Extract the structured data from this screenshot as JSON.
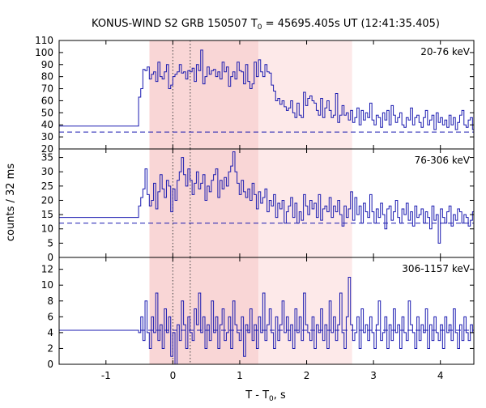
{
  "figure": {
    "title_prefix": "KONUS-WIND S2 GRB 150507 T",
    "title_sub": "0",
    "title_suffix": " = 45695.405s UT (12:41:35.405)",
    "xlabel_prefix": "T - T",
    "xlabel_sub": "0",
    "xlabel_suffix": ", s",
    "ylabel": "counts / 32 ms"
  },
  "chart_data": [
    {
      "type": "line",
      "panel_label": "20-76 keV",
      "xlim": [
        -1.7,
        4.5
      ],
      "ylim": [
        20,
        110
      ],
      "yticks": [
        20,
        30,
        40,
        50,
        60,
        70,
        80,
        90,
        100,
        110
      ],
      "background_level": 34,
      "pre_trigger": {
        "x_start": -1.7,
        "x_end": -0.512,
        "value": 39
      },
      "x_start": -0.512,
      "bin_width": 0.032,
      "values": [
        63,
        70,
        86,
        85,
        88,
        78,
        82,
        84,
        76,
        92,
        80,
        78,
        84,
        90,
        70,
        73,
        80,
        82,
        84,
        90,
        83,
        84,
        78,
        85,
        84,
        87,
        76,
        90,
        85,
        102,
        74,
        80,
        88,
        82,
        85,
        86,
        80,
        84,
        78,
        92,
        84,
        88,
        72,
        80,
        84,
        78,
        92,
        85,
        84,
        74,
        90,
        76,
        70,
        74,
        92,
        80,
        94,
        84,
        80,
        90,
        84,
        83,
        73,
        68,
        60,
        62,
        57,
        60,
        55,
        52,
        54,
        60,
        50,
        46,
        58,
        48,
        46,
        67,
        56,
        62,
        64,
        60,
        58,
        52,
        48,
        62,
        46,
        54,
        60,
        52,
        46,
        48,
        66,
        42,
        48,
        56,
        48,
        50,
        44,
        52,
        42,
        46,
        54,
        40,
        52,
        44,
        50,
        46,
        58,
        44,
        40,
        48,
        46,
        38,
        50,
        44,
        52,
        40,
        56,
        48,
        42,
        46,
        50,
        40,
        38,
        46,
        44,
        54,
        40,
        46,
        48,
        42,
        38,
        46,
        52,
        40,
        44,
        48,
        36,
        50,
        42,
        46,
        40,
        44,
        38,
        48,
        40,
        46,
        36,
        42,
        48,
        52,
        40,
        38,
        44,
        46,
        36,
        40,
        42,
        38
      ]
    },
    {
      "type": "line",
      "panel_label": "76-306 keV",
      "xlim": [
        -1.7,
        4.5
      ],
      "ylim": [
        0,
        38
      ],
      "yticks": [
        0,
        5,
        10,
        15,
        20,
        25,
        30,
        35
      ],
      "background_level": 12,
      "pre_trigger": {
        "x_start": -1.7,
        "x_end": -0.512,
        "value": 14
      },
      "x_start": -0.512,
      "bin_width": 0.032,
      "values": [
        18,
        21,
        24,
        31,
        22,
        18,
        20,
        26,
        17,
        23,
        29,
        24,
        21,
        27,
        25,
        16,
        24,
        20,
        27,
        30,
        35,
        29,
        25,
        31,
        27,
        22,
        26,
        30,
        24,
        26,
        29,
        20,
        25,
        23,
        27,
        29,
        31,
        21,
        27,
        24,
        28,
        25,
        30,
        32,
        37,
        30,
        26,
        22,
        27,
        23,
        21,
        24,
        20,
        26,
        22,
        17,
        23,
        19,
        21,
        24,
        16,
        20,
        18,
        22,
        14,
        19,
        17,
        20,
        12,
        16,
        18,
        21,
        14,
        19,
        12,
        16,
        13,
        22,
        18,
        15,
        20,
        17,
        19,
        14,
        22,
        13,
        17,
        18,
        16,
        21,
        14,
        18,
        16,
        20,
        15,
        11,
        18,
        14,
        17,
        23,
        13,
        21,
        15,
        18,
        12,
        19,
        16,
        14,
        22,
        16,
        12,
        17,
        14,
        19,
        15,
        10,
        17,
        18,
        13,
        16,
        20,
        14,
        12,
        17,
        15,
        19,
        13,
        16,
        11,
        18,
        14,
        15,
        17,
        12,
        16,
        14,
        10,
        18,
        13,
        15,
        5,
        17,
        14,
        12,
        16,
        18,
        11,
        15,
        13,
        17,
        16,
        12,
        15,
        14,
        11,
        13,
        16,
        10
      ]
    },
    {
      "type": "line",
      "panel_label": "306-1157 keV",
      "xlim": [
        -1.7,
        4.5
      ],
      "ylim": [
        0,
        13.5
      ],
      "yticks": [
        0,
        2,
        4,
        6,
        8,
        10,
        12
      ],
      "background_level": 4.3,
      "pre_trigger": {
        "x_start": -1.7,
        "x_end": -0.512,
        "value": 4.3
      },
      "x_start": -0.512,
      "bin_width": 0.032,
      "values": [
        4,
        6,
        3,
        8,
        4,
        2,
        6,
        4,
        9,
        3,
        5,
        2,
        7,
        4,
        6,
        1,
        4,
        0,
        5,
        3,
        8,
        5,
        2,
        6,
        4,
        3,
        7,
        5,
        9,
        4,
        6,
        2,
        5,
        3,
        8,
        4,
        6,
        2,
        5,
        7,
        3,
        4,
        6,
        2,
        8,
        5,
        4,
        3,
        6,
        1,
        5,
        4,
        7,
        3,
        5,
        2,
        6,
        4,
        9,
        3,
        5,
        7,
        4,
        2,
        6,
        3,
        5,
        8,
        4,
        6,
        3,
        5,
        2,
        7,
        4,
        6,
        3,
        9,
        5,
        4,
        3,
        6,
        2,
        5,
        4,
        7,
        3,
        5,
        2,
        8,
        4,
        6,
        3,
        5,
        9,
        4,
        2,
        6,
        11,
        5,
        3,
        4,
        6,
        2,
        7,
        4,
        5,
        3,
        6,
        4,
        2,
        5,
        8,
        3,
        4,
        6,
        2,
        5,
        3,
        7,
        4,
        5,
        2,
        6,
        4,
        3,
        8,
        5,
        4,
        2,
        6,
        3,
        5,
        4,
        7,
        2,
        5,
        3,
        6,
        4,
        3,
        5,
        2,
        6,
        4,
        5,
        3,
        7,
        4,
        2,
        5,
        3,
        6,
        4,
        3,
        5,
        4,
        2
      ]
    }
  ],
  "intervals": [
    {
      "x0": -0.35,
      "x1": 1.28,
      "color": "#f9d6d6"
    },
    {
      "x0": 1.28,
      "x1": 2.68,
      "color": "#fde9e9"
    }
  ],
  "vlines": [
    0.0,
    0.26
  ],
  "xticks": [
    -1,
    0,
    1,
    2,
    3,
    4
  ],
  "colors": {
    "series": "#1a1ab0",
    "background": "#1a1ab0",
    "dotted": "#444444"
  }
}
